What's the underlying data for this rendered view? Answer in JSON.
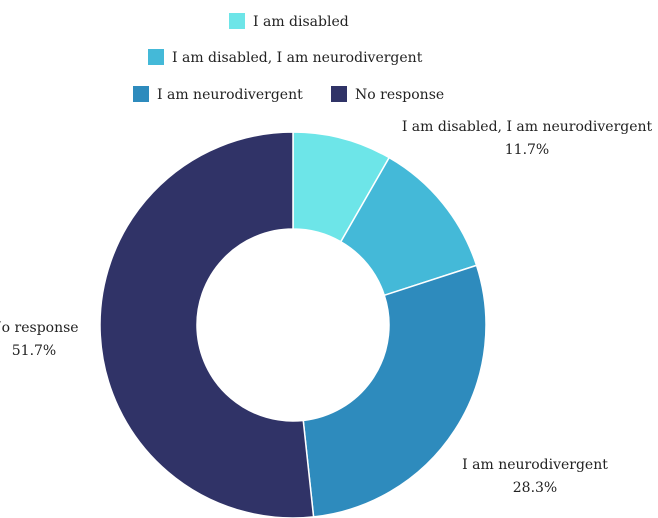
{
  "chart_data": {
    "type": "pie",
    "variant": "donut",
    "title": "",
    "categories": [
      "I am disabled",
      "I am disabled, I am neurodivergent",
      "I am neurodivergent",
      "No response"
    ],
    "values": [
      8.3,
      11.7,
      28.3,
      51.7
    ],
    "value_labels": [
      "",
      "11.7%",
      "28.3%",
      "51.7%"
    ],
    "colors": [
      "#6de5e8",
      "#44b9d8",
      "#2e8bbd",
      "#303367"
    ],
    "legend": {
      "placement": "top",
      "entries": [
        "I am disabled",
        "I am disabled, I am neurodivergent",
        "I am neurodivergent",
        "No response"
      ]
    }
  }
}
